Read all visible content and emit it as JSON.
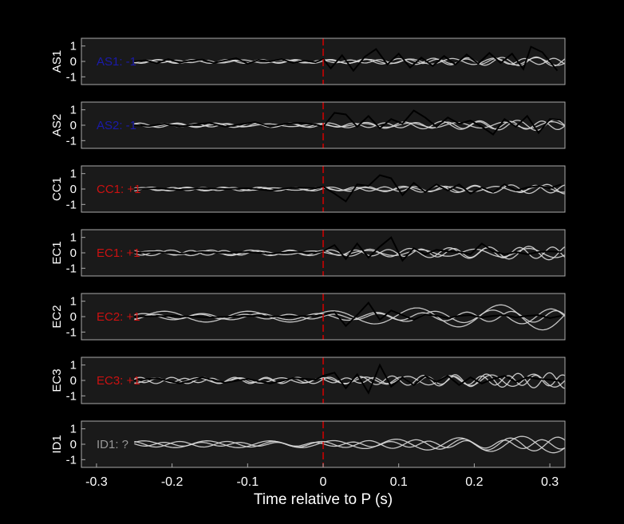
{
  "chart_data": {
    "type": "line",
    "xlabel": "Time relative to P (s)",
    "xlim": [
      -0.32,
      0.32
    ],
    "xticks": [
      -0.3,
      -0.2,
      -0.1,
      0,
      0.1,
      0.2,
      0.3
    ],
    "xtick_labels": [
      "-0.3",
      "-0.2",
      "-0.1",
      "0",
      "0.1",
      "0.2",
      "0.3"
    ],
    "ylim": [
      -1.5,
      1.5
    ],
    "yticks": [
      1,
      0,
      -1
    ],
    "ytick_labels": [
      "1",
      "0",
      "-1"
    ],
    "marker_time": 0,
    "colors": {
      "figure_bg": "#000000",
      "axes_bg": "#1a1a1a",
      "axes_frame": "#aaaaaa",
      "template_trace": "#000000",
      "member_traces": "#d8d8d8",
      "p_marker": "#d40000",
      "polarity_up": "#cc1111",
      "polarity_down": "#1a1aaa",
      "polarity_unknown": "#999999"
    },
    "panels": [
      {
        "station": "AS1",
        "annotation": "AS1: -1",
        "polarity": "down",
        "template": {
          "x": [
            -0.25,
            -0.235,
            -0.22,
            -0.205,
            -0.19,
            -0.175,
            -0.16,
            -0.145,
            -0.13,
            -0.115,
            -0.1,
            -0.085,
            -0.07,
            -0.055,
            -0.04,
            -0.025,
            -0.01,
            0,
            0.01,
            0.025,
            0.04,
            0.055,
            0.07,
            0.085,
            0.1,
            0.115,
            0.13,
            0.145,
            0.16,
            0.175,
            0.19,
            0.205,
            0.22,
            0.235,
            0.25,
            0.265,
            0.275,
            0.29,
            0.31
          ],
          "y": [
            0,
            0.08,
            -0.12,
            0.15,
            -0.08,
            0.05,
            0.12,
            -0.1,
            0.05,
            0.2,
            -0.15,
            0.1,
            0,
            0.15,
            -0.1,
            0.05,
            -0.05,
            0.15,
            -0.45,
            0.4,
            -0.6,
            0.3,
            0.8,
            -0.2,
            0.5,
            -0.4,
            0.25,
            -0.3,
            0.35,
            -0.2,
            0.45,
            -0.15,
            0.55,
            -0.1,
            0.5,
            -0.5,
            0.95,
            0.6,
            -0.6
          ]
        },
        "members": [
          {
            "amp": 0.12,
            "freq": 22,
            "phase": 0.3
          },
          {
            "amp": 0.1,
            "freq": 18,
            "phase": 1.1
          },
          {
            "amp": 0.08,
            "freq": 26,
            "phase": 2.0
          }
        ]
      },
      {
        "station": "AS2",
        "annotation": "AS2: -1",
        "polarity": "down",
        "template": {
          "x": [
            -0.25,
            -0.23,
            -0.21,
            -0.19,
            -0.17,
            -0.15,
            -0.13,
            -0.11,
            -0.09,
            -0.07,
            -0.05,
            -0.03,
            -0.01,
            0,
            0.015,
            0.03,
            0.045,
            0.06,
            0.075,
            0.09,
            0.105,
            0.12,
            0.135,
            0.15,
            0.165,
            0.18,
            0.195,
            0.21,
            0.225,
            0.24,
            0.255,
            0.27,
            0.285,
            0.3,
            0.315
          ],
          "y": [
            0,
            -0.05,
            0.1,
            -0.1,
            0.05,
            0.15,
            -0.1,
            0.05,
            0.2,
            -0.1,
            0.1,
            0.15,
            0.05,
            -0.1,
            0.8,
            0.7,
            -0.1,
            0.6,
            -0.2,
            0.4,
            0.1,
            0.95,
            0.5,
            -0.1,
            0.5,
            0.1,
            0.3,
            -0.1,
            -0.6,
            0.4,
            -0.1,
            0.6,
            -0.5,
            0.4,
            0.35
          ]
        },
        "members": [
          {
            "amp": 0.14,
            "freq": 20,
            "phase": 0.7
          },
          {
            "amp": 0.11,
            "freq": 24,
            "phase": 1.9
          },
          {
            "amp": 0.09,
            "freq": 16,
            "phase": 2.6
          }
        ]
      },
      {
        "station": "CC1",
        "annotation": "CC1: +1",
        "polarity": "up",
        "template": {
          "x": [
            -0.25,
            -0.22,
            -0.19,
            -0.16,
            -0.13,
            -0.1,
            -0.07,
            -0.04,
            -0.01,
            0,
            0.015,
            0.03,
            0.045,
            0.06,
            0.075,
            0.09,
            0.105,
            0.12,
            0.135,
            0.15,
            0.165,
            0.18,
            0.195,
            0.21,
            0.225,
            0.24,
            0.255,
            0.27,
            0.285,
            0.3,
            0.315
          ],
          "y": [
            0,
            0.05,
            -0.05,
            0.05,
            0,
            0.05,
            -0.1,
            0.1,
            0.05,
            0.15,
            -0.3,
            -0.8,
            0.3,
            0.2,
            0.9,
            0.7,
            -0.4,
            0.4,
            -0.2,
            0.3,
            -0.1,
            0.3,
            -0.3,
            0.1,
            -0.2,
            0.3,
            -0.1,
            0.1,
            0.2,
            0.05,
            0.3
          ]
        },
        "members": [
          {
            "amp": 0.12,
            "freq": 21,
            "phase": 0.2
          },
          {
            "amp": 0.1,
            "freq": 25,
            "phase": 1.4
          },
          {
            "amp": 0.08,
            "freq": 17,
            "phase": 2.3
          }
        ]
      },
      {
        "station": "EC1",
        "annotation": "EC1: +1",
        "polarity": "up",
        "template": {
          "x": [
            -0.25,
            -0.22,
            -0.19,
            -0.16,
            -0.13,
            -0.1,
            -0.07,
            -0.04,
            -0.01,
            0,
            0.015,
            0.03,
            0.045,
            0.06,
            0.075,
            0.09,
            0.105,
            0.12,
            0.135,
            0.15,
            0.165,
            0.18,
            0.195,
            0.21,
            0.225,
            0.24,
            0.255,
            0.27,
            0.285,
            0.3,
            0.315
          ],
          "y": [
            0,
            0.05,
            -0.05,
            0.05,
            0,
            0.05,
            -0.05,
            0.05,
            0,
            0.1,
            0.5,
            -0.4,
            0.6,
            -0.3,
            0.4,
            1.0,
            -0.5,
            0.3,
            -0.1,
            0.2,
            0.1,
            0.05,
            -0.1,
            0.6,
            0.1,
            -0.1,
            0.05,
            -0.1,
            0.05,
            0.1,
            0.05
          ]
        },
        "members": [
          {
            "amp": 0.18,
            "freq": 19,
            "phase": 0.5
          },
          {
            "amp": 0.15,
            "freq": 23,
            "phase": 1.7
          },
          {
            "amp": 0.12,
            "freq": 14,
            "phase": 2.8
          }
        ]
      },
      {
        "station": "EC2",
        "annotation": "EC2: +1",
        "polarity": "up",
        "template": {
          "x": [
            -0.25,
            -0.2,
            -0.15,
            -0.1,
            -0.05,
            -0.01,
            0,
            0.015,
            0.03,
            0.045,
            0.06,
            0.075,
            0.09,
            0.105,
            0.12,
            0.135,
            0.15,
            0.165,
            0.18,
            0.195,
            0.21,
            0.225,
            0.24,
            0.255,
            0.27,
            0.285,
            0.3,
            0.315
          ],
          "y": [
            0,
            0.05,
            -0.05,
            0.05,
            0,
            0.05,
            0.1,
            0.3,
            -0.6,
            0.1,
            0.9,
            -0.2,
            0.4,
            0.1,
            -0.2,
            0.15,
            0.05,
            -0.1,
            0.05,
            0.1,
            -0.05,
            0.05,
            0.1,
            -0.05,
            0.05,
            0.1,
            -0.1,
            0.05
          ]
        },
        "members": [
          {
            "amp": 0.35,
            "freq": 9,
            "phase": 0.9
          },
          {
            "amp": 0.2,
            "freq": 13,
            "phase": 2.1
          },
          {
            "amp": 0.15,
            "freq": 17,
            "phase": 0.1
          }
        ]
      },
      {
        "station": "EC3",
        "annotation": "EC3: +1",
        "polarity": "up",
        "template": {
          "x": [
            -0.25,
            -0.22,
            -0.19,
            -0.16,
            -0.13,
            -0.1,
            -0.07,
            -0.04,
            -0.01,
            0,
            0.015,
            0.03,
            0.045,
            0.06,
            0.075,
            0.09,
            0.105,
            0.12,
            0.135,
            0.15,
            0.165,
            0.18,
            0.195,
            0.21,
            0.225,
            0.24,
            0.255,
            0.27,
            0.285,
            0.3,
            0.315
          ],
          "y": [
            0,
            0.15,
            -0.2,
            0.2,
            -0.15,
            0.1,
            -0.2,
            0.15,
            0.05,
            0.3,
            0.5,
            -0.5,
            0.4,
            -0.8,
            1.0,
            -0.4,
            0.2,
            -0.3,
            0.3,
            -0.1,
            0.3,
            -0.3,
            0.2,
            -0.2,
            0.1,
            0.3,
            -0.1,
            0.2,
            0.1,
            0.05,
            -0.05
          ]
        },
        "members": [
          {
            "amp": 0.2,
            "freq": 24,
            "phase": 0.4
          },
          {
            "amp": 0.17,
            "freq": 18,
            "phase": 1.5
          },
          {
            "amp": 0.14,
            "freq": 28,
            "phase": 2.4
          }
        ]
      },
      {
        "station": "ID1",
        "annotation": "ID1: ?",
        "polarity": "unknown",
        "template": null,
        "members": [
          {
            "amp": 0.22,
            "freq": 12,
            "phase": 0.6
          },
          {
            "amp": 0.18,
            "freq": 16,
            "phase": 1.8
          },
          {
            "amp": 0.12,
            "freq": 20,
            "phase": 2.9
          }
        ]
      }
    ]
  }
}
